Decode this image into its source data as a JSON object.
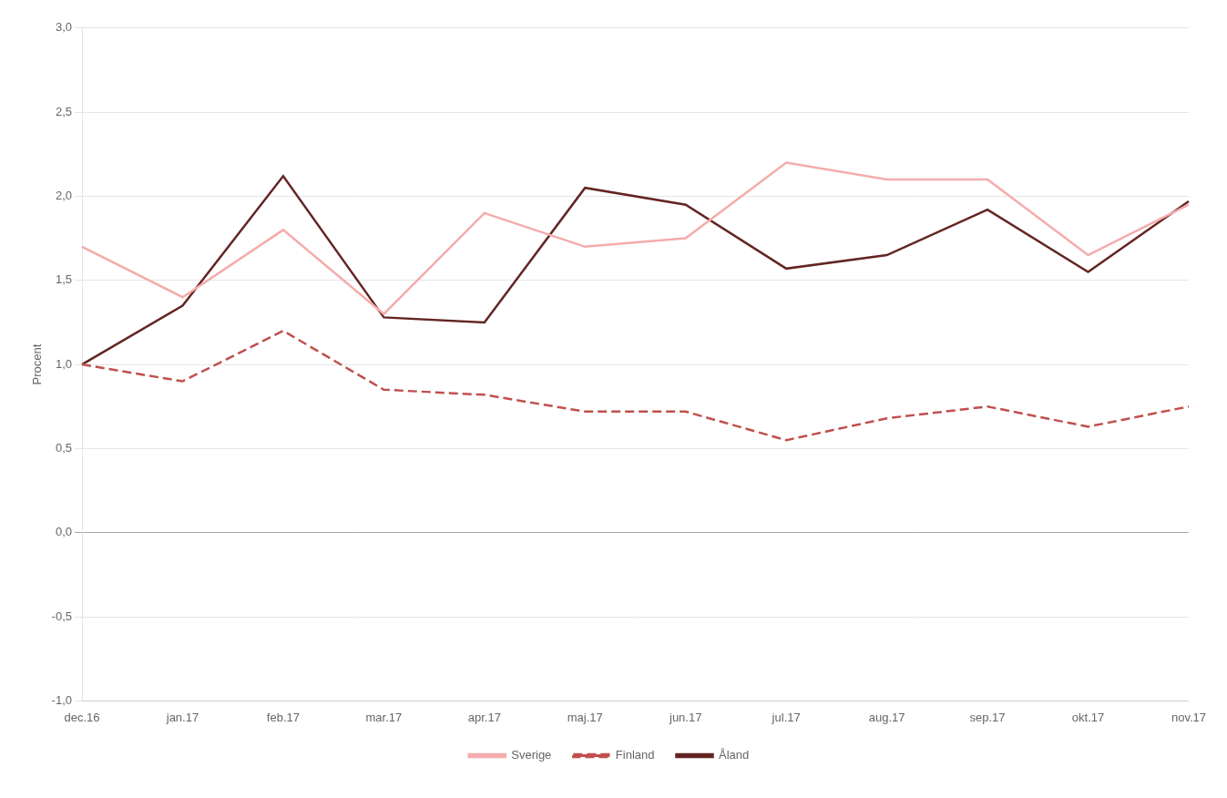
{
  "chart_data": {
    "type": "line",
    "categories": [
      "dec.16",
      "jan.17",
      "feb.17",
      "mar.17",
      "apr.17",
      "maj.17",
      "jun.17",
      "jul.17",
      "aug.17",
      "sep.17",
      "okt.17",
      "nov.17"
    ],
    "series": [
      {
        "name": "Sverige",
        "color": "#F4ACAC",
        "line_style": "solid",
        "values": [
          1.7,
          1.4,
          1.8,
          1.3,
          1.9,
          1.7,
          1.75,
          2.2,
          2.1,
          2.1,
          1.65,
          1.95
        ]
      },
      {
        "name": "Finland",
        "color": "#C0504D",
        "line_style": "dashed",
        "values": [
          1.0,
          0.9,
          1.2,
          0.85,
          0.82,
          0.72,
          0.72,
          0.55,
          0.68,
          0.75,
          0.63,
          0.75
        ]
      },
      {
        "name": "Åland",
        "color": "#632523",
        "line_style": "solid",
        "values": [
          1.0,
          1.35,
          2.12,
          1.28,
          1.25,
          2.05,
          1.95,
          1.57,
          1.65,
          1.92,
          1.55,
          1.97
        ]
      }
    ],
    "ylabel": "Procent",
    "ylim": [
      -1.0,
      3.0
    ],
    "yticks": [
      {
        "value": -1.0,
        "label": "-1,0"
      },
      {
        "value": -0.5,
        "label": "-0,5"
      },
      {
        "value": 0.0,
        "label": "0,0"
      },
      {
        "value": 0.5,
        "label": "0,5"
      },
      {
        "value": 1.0,
        "label": "1,0"
      },
      {
        "value": 1.5,
        "label": "1,5"
      },
      {
        "value": 2.0,
        "label": "2,0"
      },
      {
        "value": 2.5,
        "label": "2,5"
      },
      {
        "value": 3.0,
        "label": "3,0"
      }
    ],
    "grid": true,
    "legend": "bottom"
  }
}
